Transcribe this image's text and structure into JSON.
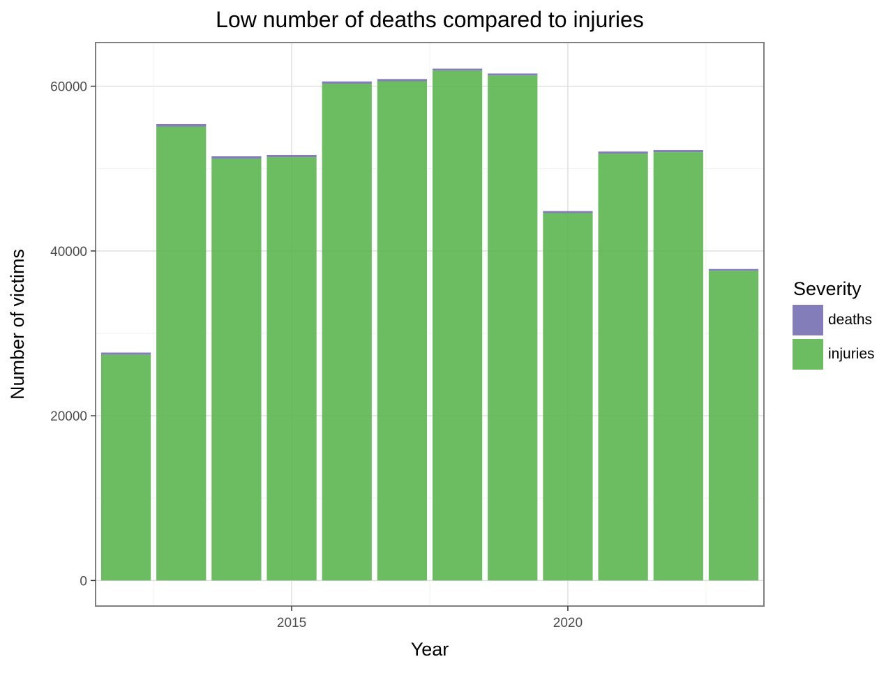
{
  "chart_data": {
    "type": "bar",
    "stacked": true,
    "title": "Low number of deaths compared to injuries",
    "xlabel": "Year",
    "ylabel": "Number of victims",
    "categories": [
      2012,
      2013,
      2014,
      2015,
      2016,
      2017,
      2018,
      2019,
      2020,
      2021,
      2022,
      2023
    ],
    "series": [
      {
        "name": "injuries",
        "color": "#5cb550",
        "values": [
          27400,
          55100,
          51200,
          51400,
          60300,
          60600,
          61900,
          61300,
          44600,
          51800,
          52000,
          37600
        ]
      },
      {
        "name": "deaths",
        "color": "#7570b3",
        "values": [
          270,
          300,
          290,
          270,
          280,
          270,
          230,
          240,
          240,
          270,
          260,
          210
        ]
      }
    ],
    "xlim": [
      2011.45,
      2023.55
    ],
    "ylim": [
      -3100,
      65300
    ],
    "x_ticks": [
      2015,
      2020
    ],
    "x_tick_labels": [
      "2015",
      "2020"
    ],
    "y_ticks": [
      0,
      20000,
      40000,
      60000
    ],
    "y_tick_labels": [
      "0",
      "20000",
      "40000",
      "60000"
    ],
    "legend": {
      "title": "Severity",
      "entries": [
        "deaths",
        "injuries"
      ],
      "placement": "right"
    },
    "grid": true,
    "theme": "bw"
  }
}
